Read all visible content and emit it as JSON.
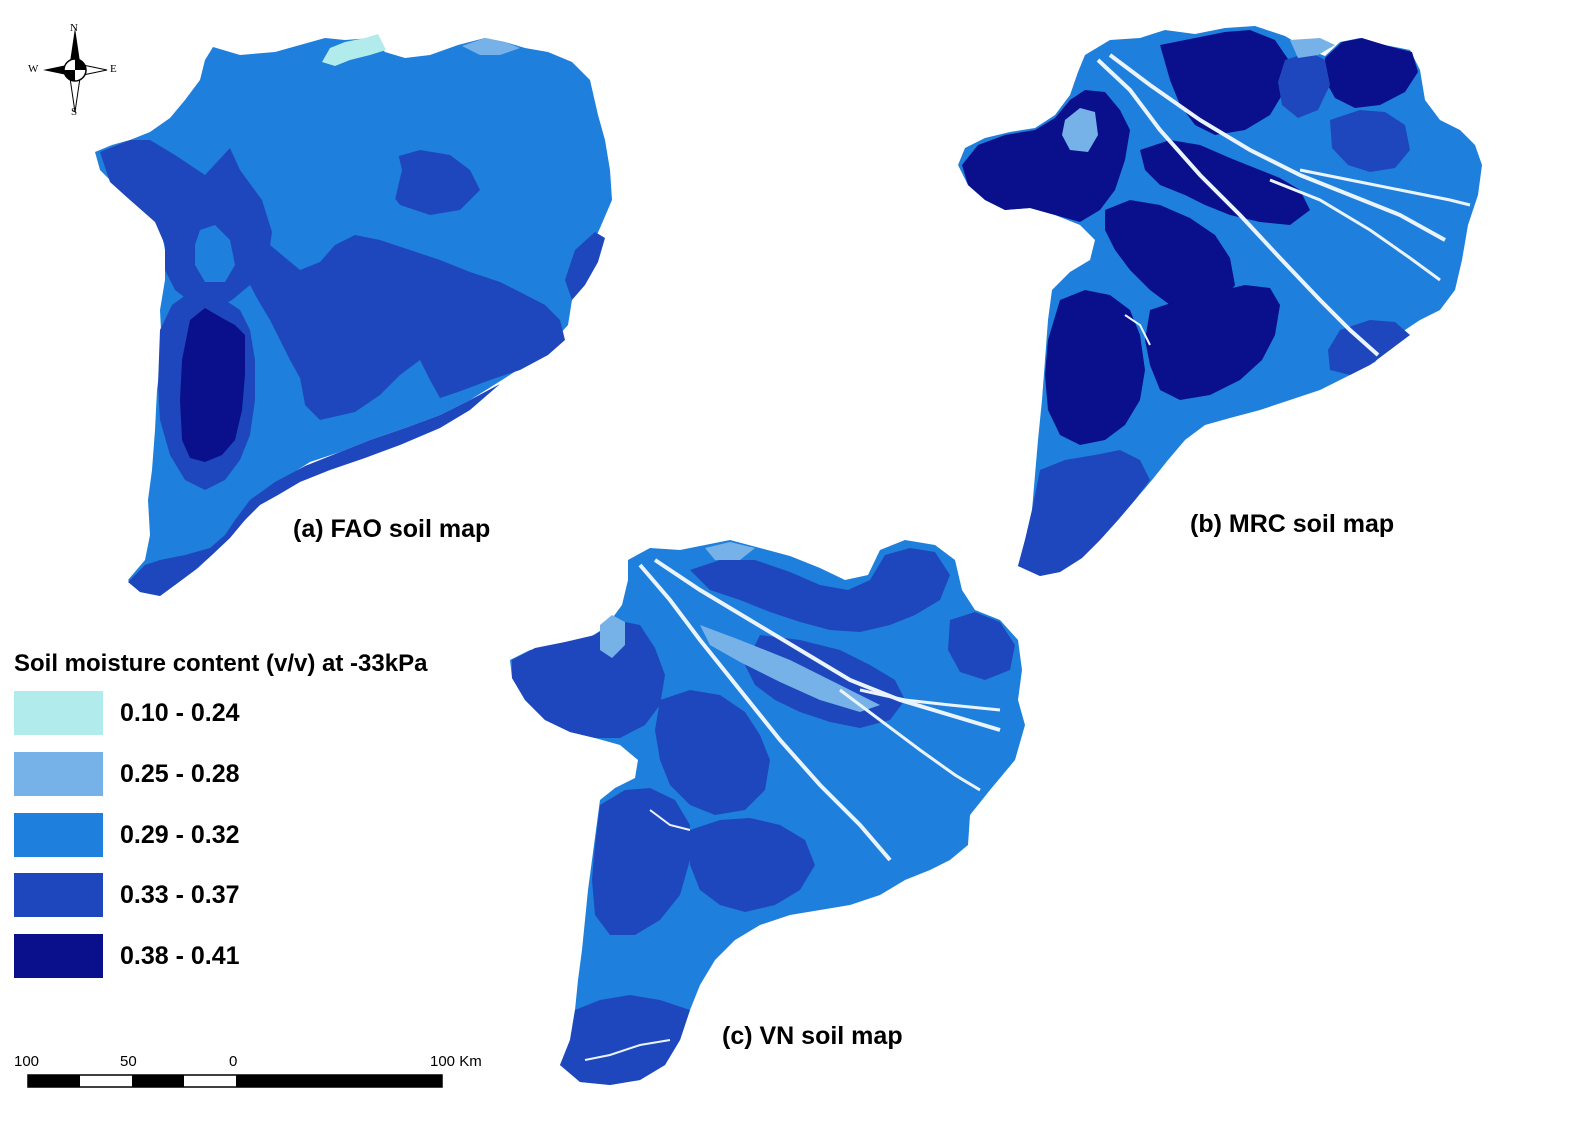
{
  "maps": [
    {
      "label": "(a) FAO soil map"
    },
    {
      "label": "(b) MRC soil map"
    },
    {
      "label": "(c) VN soil map"
    }
  ],
  "legend": {
    "title": "Soil moisture content (v/v) at -33kPa",
    "classes": [
      {
        "label": "0.10 - 0.24",
        "color": "#b2ebeb"
      },
      {
        "label": "0.25 - 0.28",
        "color": "#76b2e8"
      },
      {
        "label": "0.29 - 0.32",
        "color": "#1f7fdc"
      },
      {
        "label": "0.33 - 0.37",
        "color": "#1f47bd"
      },
      {
        "label": "0.38 - 0.41",
        "color": "#0a0f8c"
      }
    ]
  },
  "compass": {
    "n": "N",
    "s": "S",
    "e": "E",
    "w": "W"
  },
  "scale_bar": {
    "labels": [
      "100",
      "50",
      "0",
      "100 Km"
    ]
  }
}
